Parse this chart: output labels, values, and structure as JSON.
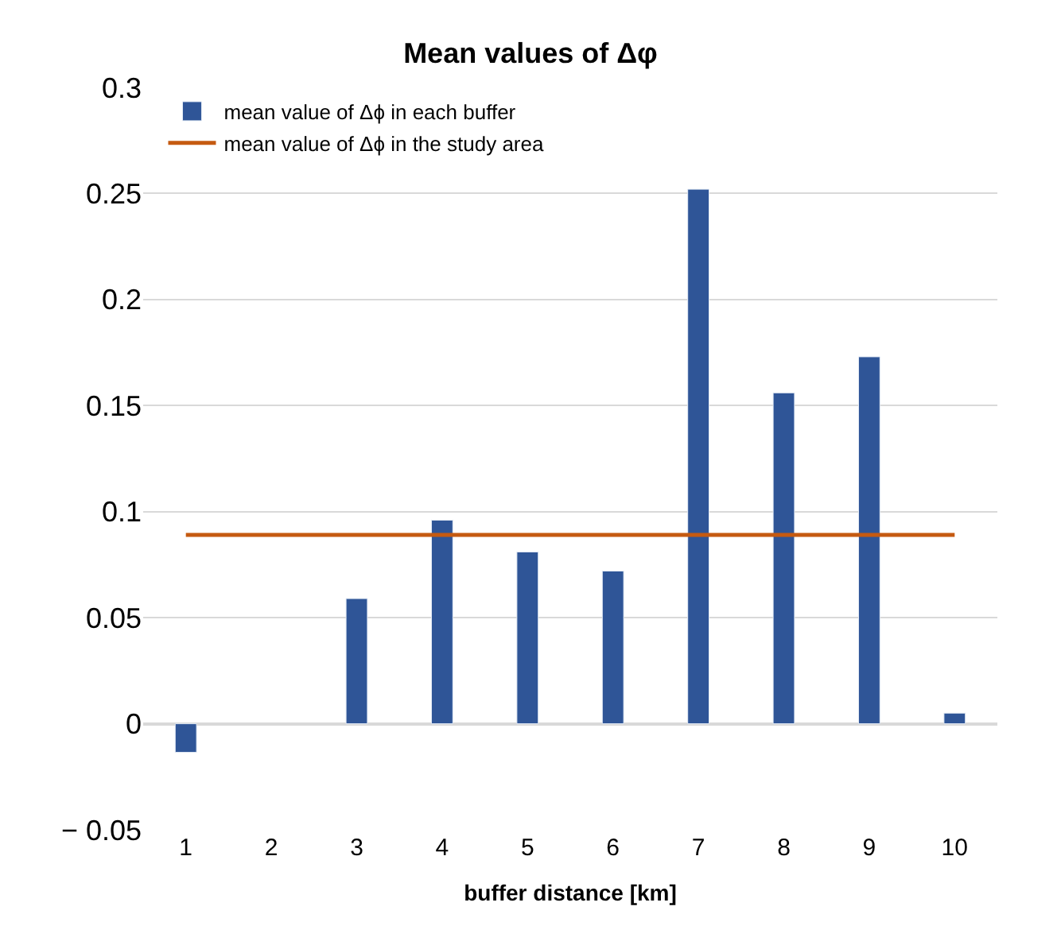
{
  "chart_data": {
    "type": "bar",
    "title": "Mean values of Δφ",
    "xlabel": "buffer distance [km]",
    "categories": [
      "1",
      "2",
      "3",
      "4",
      "5",
      "6",
      "7",
      "8",
      "9",
      "10"
    ],
    "series": [
      {
        "name": "mean value of Δϕ in each buffer",
        "color": "#2f5597",
        "values": [
          -0.0135,
          null,
          0.059,
          0.096,
          0.081,
          0.072,
          0.252,
          0.156,
          0.173,
          0.005
        ]
      },
      {
        "name": "mean value of Δϕ in the study area",
        "color": "#c55a11",
        "type": "line",
        "values": [
          0.089,
          0.089,
          0.089,
          0.089,
          0.089,
          0.089,
          0.089,
          0.089,
          0.089,
          0.089
        ]
      }
    ],
    "ylim": [
      -0.05,
      0.3
    ],
    "yticks": [
      {
        "value": -0.05,
        "label": "− 0.05"
      },
      0,
      0.05,
      0.1,
      0.15,
      0.2,
      0.25,
      0.3
    ],
    "grid": "y",
    "legend": "top left"
  }
}
